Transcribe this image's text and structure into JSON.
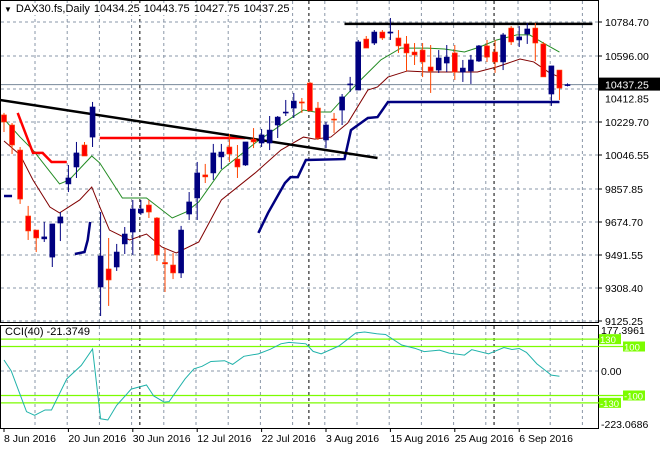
{
  "header": {
    "dropdown_icon": "triangle-down-icon",
    "symbol": "DAX30.fs,Daily",
    "open": "10434.25",
    "high": "10443.75",
    "low": "10427.75",
    "close": "10437.25"
  },
  "cci_panel": {
    "label": "CCI(40) -21.3749",
    "axis_ticks": [
      {
        "value": 177.3961,
        "label": "177.3961"
      },
      {
        "value": 0,
        "label": "0.00"
      },
      {
        "value": -223.0686,
        "label": "-223.0686"
      }
    ],
    "levels": [
      {
        "value": 130,
        "label": "130"
      },
      {
        "value": 100,
        "label": "100"
      },
      {
        "value": -100,
        "label": "-100"
      },
      {
        "value": -130,
        "label": "-130"
      }
    ],
    "level_color": "#7CFC00",
    "line_color": "#20B2AA"
  },
  "chart_data": [
    {
      "type": "candlestick",
      "title": "DAX30.fs,Daily",
      "ylim": [
        9125.25,
        10784.7
      ],
      "grid": true,
      "y_ticks": [
        {
          "value": 10784.7,
          "label": "10784.70"
        },
        {
          "value": 10596.0,
          "label": "10596.00"
        },
        {
          "value": 10412.85,
          "label": "10412.85"
        },
        {
          "value": 10229.7,
          "label": "10229.70"
        },
        {
          "value": 10046.55,
          "label": "10046.55"
        },
        {
          "value": 9857.85,
          "label": "9857.85"
        },
        {
          "value": 9674.7,
          "label": "9674.70"
        },
        {
          "value": 9491.55,
          "label": "9491.55"
        },
        {
          "value": 9308.4,
          "label": "9308.40"
        },
        {
          "value": 9125.25,
          "label": "9125.25"
        }
      ],
      "current_price": {
        "value": 10437.25,
        "label": "10437.25"
      },
      "x_ticks": [
        {
          "bar": 0,
          "label": "8 Jun 2016"
        },
        {
          "bar": 8,
          "label": "20 Jun 2016"
        },
        {
          "bar": 16,
          "label": "30 Jun 2016"
        },
        {
          "bar": 24,
          "label": "12 Jul 2016"
        },
        {
          "bar": 32,
          "label": "22 Jul 2016"
        },
        {
          "bar": 40,
          "label": "3 Aug 2016"
        },
        {
          "bar": 48,
          "label": "15 Aug 2016"
        },
        {
          "bar": 56,
          "label": "25 Aug 2016"
        },
        {
          "bar": 64,
          "label": "6 Sep 2016"
        }
      ],
      "period_separators_at_bar": [
        17,
        38,
        61
      ],
      "colors": {
        "bull": "#000080",
        "bear": "#FF0000",
        "bear_wick": "#FF4500",
        "ma_fast": "#228B22",
        "ma_slow": "#800000",
        "channel_low": "#000080",
        "channel_high": "#FF0000",
        "trendline": "#000000"
      },
      "candles_ohlc": [
        [
          10269,
          10280,
          10174,
          10230
        ],
        [
          10213,
          10224,
          10052,
          10102
        ],
        [
          10074,
          10091,
          9775,
          9802
        ],
        [
          9708,
          9764,
          9575,
          9625
        ],
        [
          9630,
          9630,
          9508,
          9586
        ],
        [
          9581,
          9675,
          9564,
          9592
        ],
        [
          9480,
          9664,
          9425,
          9664
        ],
        [
          9669,
          9730,
          9569,
          9703
        ],
        [
          9886,
          9991,
          9841,
          9919
        ],
        [
          9980,
          10119,
          9919,
          10058
        ],
        [
          10102,
          10119,
          10041,
          10041
        ],
        [
          10146,
          10341,
          10091,
          10313
        ],
        [
          9314,
          9730,
          9153,
          9486
        ],
        [
          9414,
          9586,
          9209,
          9353
        ],
        [
          9425,
          9553,
          9403,
          9508
        ],
        [
          9553,
          9647,
          9497,
          9608
        ],
        [
          9619,
          9797,
          9492,
          9747
        ],
        [
          9725,
          9797,
          9714,
          9747
        ],
        [
          9769,
          9797,
          9697,
          9730
        ],
        [
          9697,
          9702,
          9458,
          9492
        ],
        [
          9450,
          9530,
          9286,
          9442
        ],
        [
          9436,
          9503,
          9358,
          9392
        ],
        [
          9392,
          9653,
          9364,
          9630
        ],
        [
          9719,
          9841,
          9686,
          9786
        ],
        [
          9808,
          10008,
          9686,
          9947
        ],
        [
          9936,
          9997,
          9891,
          9925
        ],
        [
          9947,
          10108,
          9908,
          10058
        ],
        [
          10036,
          10108,
          9969,
          10063
        ],
        [
          10091,
          10163,
          10008,
          10052
        ],
        [
          10024,
          10102,
          9919,
          9980
        ],
        [
          9991,
          10119,
          9986,
          10119
        ],
        [
          10135,
          10196,
          10085,
          10119
        ],
        [
          10113,
          10191,
          10091,
          10158
        ],
        [
          10113,
          10263,
          10074,
          10185
        ],
        [
          10213,
          10263,
          10141,
          10257
        ],
        [
          10280,
          10352,
          10263,
          10285
        ],
        [
          10307,
          10391,
          10252,
          10346
        ],
        [
          10341,
          10363,
          10280,
          10335
        ],
        [
          10446,
          10452,
          10291,
          10291
        ],
        [
          10307,
          10341,
          10130,
          10141
        ],
        [
          10130,
          10230,
          10085,
          10213
        ],
        [
          10246,
          10280,
          10169,
          10241
        ],
        [
          10296,
          10385,
          10213,
          10369
        ],
        [
          10441,
          10480,
          10396,
          10441
        ],
        [
          10407,
          10685,
          10407,
          10674
        ],
        [
          10690,
          10707,
          10640,
          10640
        ],
        [
          10668,
          10740,
          10657,
          10729
        ],
        [
          10729,
          10740,
          10685,
          10696
        ],
        [
          10724,
          10807,
          10685,
          10729
        ],
        [
          10696,
          10740,
          10613,
          10652
        ],
        [
          10663,
          10707,
          10513,
          10613
        ],
        [
          10618,
          10668,
          10546,
          10602
        ],
        [
          10629,
          10668,
          10479,
          10563
        ],
        [
          10535,
          10657,
          10391,
          10513
        ],
        [
          10518,
          10629,
          10502,
          10585
        ],
        [
          10557,
          10657,
          10507,
          10590
        ],
        [
          10613,
          10657,
          10463,
          10507
        ],
        [
          10507,
          10574,
          10452,
          10529
        ],
        [
          10513,
          10602,
          10441,
          10574
        ],
        [
          10568,
          10657,
          10563,
          10652
        ],
        [
          10652,
          10685,
          10563,
          10590
        ],
        [
          10618,
          10685,
          10502,
          10563
        ],
        [
          10563,
          10724,
          10518,
          10713
        ],
        [
          10751,
          10762,
          10657,
          10674
        ],
        [
          10685,
          10762,
          10646,
          10702
        ],
        [
          10718,
          10779,
          10663,
          10746
        ],
        [
          10751,
          10779,
          10568,
          10668
        ],
        [
          10663,
          10674,
          10480,
          10480
        ],
        [
          10385,
          10541,
          10319,
          10541
        ],
        [
          10518,
          10518,
          10352,
          10418
        ],
        [
          10434.25,
          10443.75,
          10427.75,
          10437.25
        ]
      ],
      "overlays": {
        "ma_fast": [
          [
            0,
            10246
          ],
          [
            2,
            10146
          ],
          [
            3.6,
            10074
          ],
          [
            6.9,
            9886
          ],
          [
            8.1,
            9908
          ],
          [
            10.9,
            10041
          ],
          [
            11.9,
            10002
          ],
          [
            14.7,
            9808
          ],
          [
            17.7,
            9808
          ],
          [
            20.9,
            9697
          ],
          [
            22.6,
            9730
          ],
          [
            24.2,
            9786
          ],
          [
            27,
            9963
          ],
          [
            31.2,
            10113
          ],
          [
            35.3,
            10241
          ],
          [
            37.2,
            10296
          ],
          [
            38.6,
            10285
          ],
          [
            40.6,
            10285
          ],
          [
            42.3,
            10368
          ],
          [
            44.3,
            10463
          ],
          [
            46.8,
            10574
          ],
          [
            49.3,
            10640
          ],
          [
            52.6,
            10640
          ],
          [
            54.7,
            10635
          ],
          [
            57.2,
            10618
          ],
          [
            59.1,
            10646
          ],
          [
            61.2,
            10685
          ],
          [
            63.7,
            10713
          ],
          [
            65.3,
            10713
          ],
          [
            67,
            10668
          ],
          [
            69,
            10618
          ]
        ],
        "ma_slow": [
          [
            0,
            10124
          ],
          [
            2,
            10047
          ],
          [
            3.6,
            9908
          ],
          [
            5.7,
            9758
          ],
          [
            6.9,
            9725
          ],
          [
            9.4,
            9797
          ],
          [
            10.9,
            9869
          ],
          [
            11.9,
            9758
          ],
          [
            13.1,
            9630
          ],
          [
            15.6,
            9575
          ],
          [
            17.7,
            9608
          ],
          [
            19.6,
            9536
          ],
          [
            21.4,
            9503
          ],
          [
            24.2,
            9564
          ],
          [
            27,
            9797
          ],
          [
            31.2,
            9947
          ],
          [
            34.4,
            10074
          ],
          [
            37.2,
            10146
          ],
          [
            38.6,
            10135
          ],
          [
            40.6,
            10146
          ],
          [
            42.7,
            10224
          ],
          [
            45.2,
            10407
          ],
          [
            46.4,
            10424
          ],
          [
            47.7,
            10479
          ],
          [
            50.1,
            10513
          ],
          [
            52.6,
            10507
          ],
          [
            55.9,
            10507
          ],
          [
            58.8,
            10507
          ],
          [
            61.2,
            10535
          ],
          [
            64.1,
            10579
          ],
          [
            65.8,
            10563
          ],
          [
            67.8,
            10502
          ],
          [
            69,
            10479
          ]
        ],
        "channel_low": [
          [
            [
              0,
              9819
            ],
            [
              1,
              9819
            ]
          ],
          [
            [
              8.8,
              9497
            ],
            [
              10,
              9508
            ],
            [
              10.4,
              9575
            ],
            [
              10.7,
              9675
            ]
          ],
          [
            [
              31.6,
              9614
            ],
            [
              32.8,
              9725
            ],
            [
              34.9,
              9891
            ],
            [
              35.6,
              9924
            ],
            [
              36.5,
              9924
            ],
            [
              37.5,
              10019
            ],
            [
              42.3,
              10024
            ],
            [
              43.1,
              10185
            ],
            [
              45.2,
              10252
            ],
            [
              46.4,
              10257
            ],
            [
              47.7,
              10341
            ],
            [
              69,
              10341
            ]
          ]
        ],
        "channel_high": [
          [
            [
              1.7,
              10280
            ],
            [
              3.6,
              10058
            ],
            [
              4.8,
              10058
            ],
            [
              5.9,
              10008
            ],
            [
              7.8,
              10008
            ]
          ],
          [
            [
              11.9,
              10141
            ],
            [
              30,
              10141
            ]
          ]
        ],
        "trendline": [
          [
            -0.5,
            10352
          ],
          [
            46.4,
            10030
          ]
        ],
        "resistance": [
          [
            42.3,
            10774
          ],
          [
            73.1,
            10774
          ]
        ]
      }
    },
    {
      "type": "line",
      "title": "CCI(40) -21.3749",
      "ylim": [
        -223.0686,
        177.3961
      ],
      "series": [
        {
          "name": "CCI(40)",
          "points": [
            [
              0,
              45
            ],
            [
              0.9,
              0
            ],
            [
              2.8,
              -166
            ],
            [
              3.8,
              -181
            ],
            [
              5.1,
              -159
            ],
            [
              5.9,
              -159
            ],
            [
              7.8,
              -32
            ],
            [
              9.6,
              23
            ],
            [
              11,
              90
            ],
            [
              12,
              -195
            ],
            [
              12.9,
              -200
            ],
            [
              14,
              -140
            ],
            [
              15.8,
              -74
            ],
            [
              17.7,
              -57
            ],
            [
              18.6,
              -102
            ],
            [
              19.9,
              -127
            ],
            [
              20.5,
              -125
            ],
            [
              22.5,
              -32
            ],
            [
              23.6,
              9
            ],
            [
              24.6,
              19
            ],
            [
              25.7,
              39
            ],
            [
              27.4,
              42
            ],
            [
              28.4,
              27
            ],
            [
              29.8,
              60
            ],
            [
              31.6,
              70
            ],
            [
              33.1,
              89
            ],
            [
              34.4,
              111
            ],
            [
              35.4,
              117
            ],
            [
              37.5,
              111
            ],
            [
              38.4,
              80
            ],
            [
              39.4,
              70
            ],
            [
              41.6,
              102
            ],
            [
              43.7,
              155
            ],
            [
              44.8,
              159
            ],
            [
              46.3,
              152
            ],
            [
              47.4,
              149
            ],
            [
              49.4,
              106
            ],
            [
              51,
              93
            ],
            [
              52.2,
              79
            ],
            [
              54.1,
              85
            ],
            [
              55.3,
              73
            ],
            [
              57.2,
              65
            ],
            [
              58.1,
              87
            ],
            [
              60.2,
              70
            ],
            [
              62.1,
              96
            ],
            [
              63.1,
              88
            ],
            [
              64,
              92
            ],
            [
              64.9,
              76
            ],
            [
              66.2,
              29
            ],
            [
              68,
              -17
            ],
            [
              69,
              -21.37
            ]
          ]
        }
      ]
    }
  ]
}
